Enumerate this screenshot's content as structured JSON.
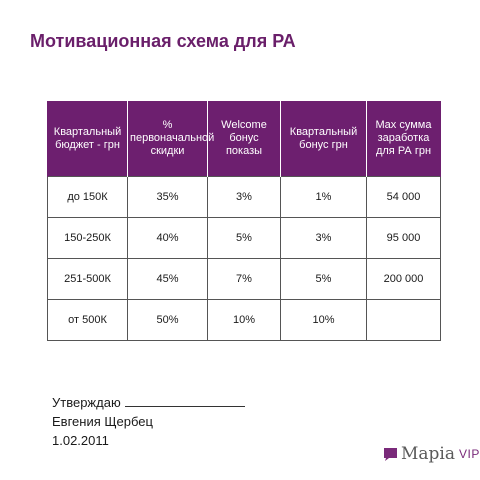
{
  "title": "Мотивационная схема для РА",
  "table": {
    "headers": [
      "Квартальный бюджет - грн",
      "% первоначальной скидки",
      "Welcome бонус показы",
      "Квартальный бонус грн",
      "Max сумма заработка для РА грн"
    ],
    "rows": [
      [
        "до 150К",
        "35%",
        "3%",
        "1%",
        "54 000"
      ],
      [
        "150-250К",
        "40%",
        "5%",
        "3%",
        "95 000"
      ],
      [
        "251-500К",
        "45%",
        "7%",
        "5%",
        "200 000"
      ],
      [
        "от 500К",
        "50%",
        "10%",
        "10%",
        ""
      ]
    ]
  },
  "signature": {
    "approve_label": "Утверждаю",
    "name": "Евгения Щербец",
    "date": "1.02.2011"
  },
  "logo": {
    "name": "Mapia",
    "suffix": "VIP",
    "icon": "speech-bubble-icon",
    "color": "#7a2a7a"
  },
  "colors": {
    "title": "#6a1f6a",
    "header_bg": "#6d1f6f"
  }
}
